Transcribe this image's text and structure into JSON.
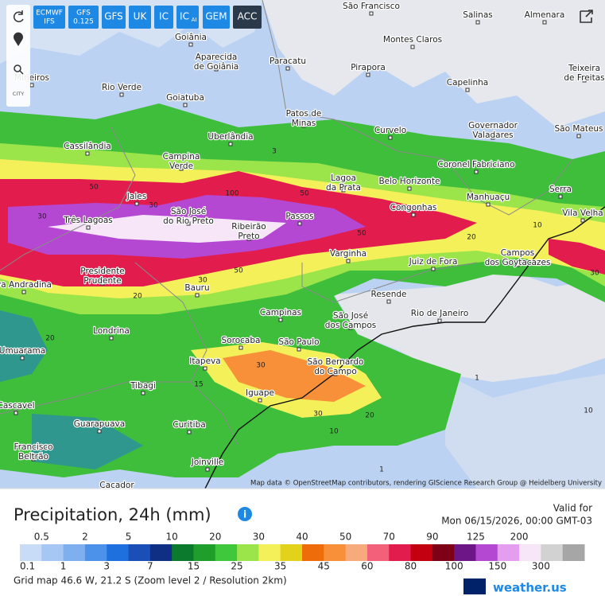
{
  "toolbar": {
    "models": [
      {
        "label": "ECMWF",
        "sub": "IFS"
      },
      {
        "label": "GFS",
        "sub": "0.125"
      },
      {
        "label": "GFS"
      },
      {
        "label": "UK"
      },
      {
        "label": "IC"
      },
      {
        "label": "IC",
        "sub": "AI"
      },
      {
        "label": "GEM"
      },
      {
        "label": "ACC"
      }
    ],
    "city_button": "CITY"
  },
  "map": {
    "cities": [
      {
        "lines": [
          "São Francisco"
        ]
      },
      {
        "lines": [
          "Salinas"
        ]
      },
      {
        "lines": [
          "Almenara"
        ]
      },
      {
        "lines": [
          "Goiânia"
        ]
      },
      {
        "lines": [
          "Montes Claros"
        ]
      },
      {
        "lines": [
          "Aparecida",
          "de Goiânia"
        ]
      },
      {
        "lines": [
          "Paracatu"
        ]
      },
      {
        "lines": [
          "Pirapora"
        ]
      },
      {
        "lines": [
          "Teixeira",
          "de Freitas"
        ]
      },
      {
        "lines": [
          "Mineiros"
        ]
      },
      {
        "lines": [
          "Rio Verde"
        ]
      },
      {
        "lines": [
          "Capelinha"
        ]
      },
      {
        "lines": [
          "Goiatuba"
        ]
      },
      {
        "lines": [
          "Patos de",
          "Minas"
        ]
      },
      {
        "lines": [
          "Curvelo"
        ]
      },
      {
        "lines": [
          "Governador",
          "Valadares"
        ]
      },
      {
        "lines": [
          "São Mateus"
        ]
      },
      {
        "lines": [
          "Uberlândia"
        ]
      },
      {
        "lines": [
          "Cassilândia"
        ]
      },
      {
        "lines": [
          "Campina",
          "Verde"
        ]
      },
      {
        "lines": [
          "Lagoa",
          "da Prata"
        ]
      },
      {
        "lines": [
          "Coronel Fabriciano"
        ]
      },
      {
        "lines": [
          "Belo Horizonte"
        ]
      },
      {
        "lines": [
          "Manhuaçu"
        ]
      },
      {
        "lines": [
          "Serra"
        ]
      },
      {
        "lines": [
          "Jales"
        ]
      },
      {
        "lines": [
          "Três Lagoas"
        ]
      },
      {
        "lines": [
          "São José",
          "do Rio Preto"
        ]
      },
      {
        "lines": [
          "Passos"
        ]
      },
      {
        "lines": [
          "Congonhas"
        ]
      },
      {
        "lines": [
          "Vila Velha"
        ]
      },
      {
        "lines": [
          "Ribeirão",
          "Preto"
        ]
      },
      {
        "lines": [
          "Varginha"
        ]
      },
      {
        "lines": [
          "Campos",
          "dos Goytacazes"
        ]
      },
      {
        "lines": [
          "Juiz de Fora"
        ]
      },
      {
        "lines": [
          "Presidente",
          "Prudente"
        ]
      },
      {
        "lines": [
          "va Andradina"
        ]
      },
      {
        "lines": [
          "Bauru"
        ]
      },
      {
        "lines": [
          "Resende"
        ]
      },
      {
        "lines": [
          "Campinas"
        ]
      },
      {
        "lines": [
          "São José",
          "dos Campos"
        ]
      },
      {
        "lines": [
          "Rio de Janeiro"
        ]
      },
      {
        "lines": [
          "Londrina"
        ]
      },
      {
        "lines": [
          "Sorocaba"
        ]
      },
      {
        "lines": [
          "São Paulo"
        ]
      },
      {
        "lines": [
          "Umuarama"
        ]
      },
      {
        "lines": [
          "Itapeva"
        ]
      },
      {
        "lines": [
          "São Bernardo",
          "do Campo"
        ]
      },
      {
        "lines": [
          "Tibagi"
        ]
      },
      {
        "lines": [
          "Iguape"
        ]
      },
      {
        "lines": [
          "Cascavel"
        ]
      },
      {
        "lines": [
          "Guarapuava"
        ]
      },
      {
        "lines": [
          "Curitiba"
        ]
      },
      {
        "lines": [
          "Francisco",
          "Beltrão"
        ]
      },
      {
        "lines": [
          "Joinville"
        ]
      },
      {
        "lines": [
          "Cacador"
        ]
      }
    ],
    "contour_labels": [
      "30",
      "50",
      "30",
      "100",
      "50",
      "50",
      "20",
      "10",
      "30",
      "50",
      "30",
      "20",
      "20",
      "30",
      "15",
      "30",
      "20",
      "10",
      "1",
      "1",
      "10",
      "3"
    ],
    "attribution": "Map data © OpenStreetMap contributors, rendering GIScience Research Group @ Heidelberg University"
  },
  "panel": {
    "title": "Precipitation, 24h (mm)",
    "valid_label": "Valid for",
    "valid_time": "Mon 06/15/2026, 00:00 GMT-03",
    "grid_info": "Grid map 46.6 W, 21.2 S (Zoom level 2 / Resolution 2km)",
    "logo": "weather.us",
    "legend": {
      "labels": [
        "0.1",
        "0.5",
        "1",
        "2",
        "3",
        "5",
        "7",
        "10",
        "15",
        "20",
        "25",
        "30",
        "35",
        "40",
        "45",
        "50",
        "60",
        "70",
        "80",
        "90",
        "100",
        "125",
        "150",
        "200",
        "300"
      ],
      "colors": [
        "#c9dcf7",
        "#a6c6f3",
        "#7eb0ef",
        "#4d92ea",
        "#1f70df",
        "#1a4fb8",
        "#0f2f84",
        "#0b7a2d",
        "#1f9e2c",
        "#3fc83c",
        "#9be44a",
        "#f3f05a",
        "#e2d21a",
        "#ef6c0a",
        "#f8903a",
        "#f7aa7c",
        "#f2607a",
        "#e21c4c",
        "#c20010",
        "#7e0016",
        "#6c1688",
        "#b548d2",
        "#e49ef0",
        "#f6e6f8",
        "#d2d2d2",
        "#a6a6a6"
      ]
    }
  }
}
